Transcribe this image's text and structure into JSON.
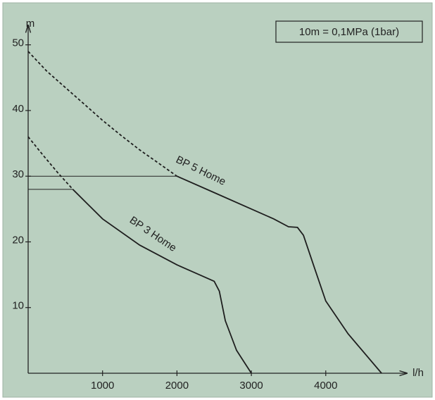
{
  "chart_data": {
    "type": "line",
    "x_label": "l/h",
    "y_label": "m",
    "annotation": "10m = 0,1MPa (1bar)",
    "xlim": [
      0,
      5000
    ],
    "ylim": [
      0,
      52
    ],
    "xticks": [
      1000,
      2000,
      3000,
      4000
    ],
    "yticks": [
      10,
      20,
      30,
      40,
      50
    ],
    "series": [
      {
        "color": "#1e1e1e",
        "line_style": "dashed",
        "x": [
          0,
          250,
          500,
          750,
          1000,
          1250,
          1500,
          1750,
          2000
        ],
        "values": [
          49,
          46,
          43.5,
          41,
          38.5,
          36.2,
          34,
          32,
          30
        ]
      },
      {
        "name": "BP 5 Home",
        "color": "#1e1e1e",
        "line_style": "solid",
        "x": [
          2000,
          2500,
          3000,
          3300,
          3500,
          3620,
          3700,
          3850,
          4000,
          4300,
          4750
        ],
        "values": [
          30,
          27.5,
          25,
          23.5,
          22.3,
          22.2,
          21,
          16,
          11,
          6,
          0
        ]
      },
      {
        "color": "#1e1e1e",
        "line_style": "dashed",
        "x": [
          0,
          200,
          400,
          600
        ],
        "values": [
          36,
          33.2,
          30.5,
          28
        ]
      },
      {
        "name": "BP 3 Home",
        "color": "#1e1e1e",
        "line_style": "solid",
        "x": [
          600,
          1000,
          1500,
          2000,
          2300,
          2500,
          2570,
          2650,
          2800,
          3000
        ],
        "values": [
          28,
          23.5,
          19.5,
          16.5,
          15,
          14,
          12.5,
          8,
          3.5,
          0
        ]
      }
    ],
    "reference_lines": [
      {
        "y": 30,
        "x_end": 2000
      },
      {
        "y": 28,
        "x_end": 600
      }
    ]
  }
}
